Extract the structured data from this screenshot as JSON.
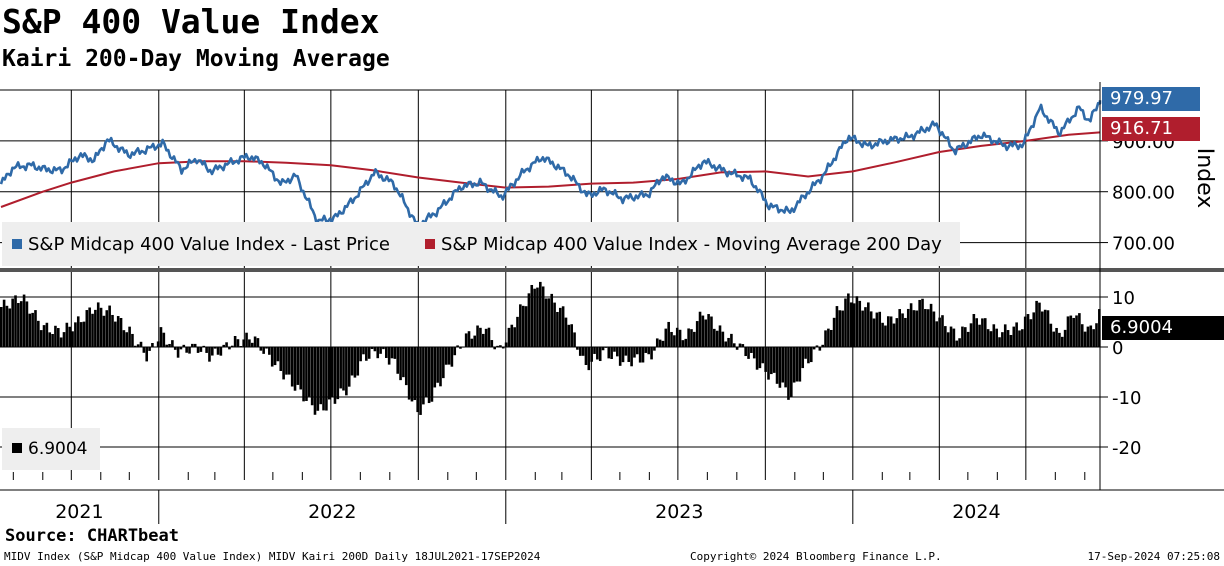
{
  "header": {
    "title": "S&P 400 Value Index",
    "subtitle": "Kairi 200-Day Moving Average"
  },
  "colors": {
    "price": "#2f6aa8",
    "ma": "#b01e2d",
    "kairi": "#000000",
    "legend_bg": "#eeeeee"
  },
  "chart_data": [
    {
      "type": "line",
      "ylabel": "Index",
      "ylim": [
        650,
        1000
      ],
      "yticks": [
        700,
        800,
        900
      ],
      "ytick_labels": [
        "700.00",
        "800.00",
        "900.00"
      ],
      "x_range": [
        "2021-07-18",
        "2024-09-17"
      ],
      "x_year_labels": [
        "2021",
        "2022",
        "2023",
        "2024"
      ],
      "grid": true,
      "legend_position": "bottom-left",
      "series": [
        {
          "name": "S&P Midcap 400 Value Index - Last Price",
          "last_value": "979.97",
          "points": [
            [
              "2021-07-19",
              815
            ],
            [
              "2021-08-01",
              848
            ],
            [
              "2021-08-20",
              852
            ],
            [
              "2021-09-03",
              844
            ],
            [
              "2021-09-20",
              842
            ],
            [
              "2021-10-10",
              872
            ],
            [
              "2021-10-25",
              862
            ],
            [
              "2021-11-08",
              902
            ],
            [
              "2021-11-30",
              873
            ],
            [
              "2021-12-15",
              880
            ],
            [
              "2022-01-05",
              895
            ],
            [
              "2022-01-25",
              843
            ],
            [
              "2022-02-10",
              865
            ],
            [
              "2022-02-25",
              840
            ],
            [
              "2022-03-15",
              855
            ],
            [
              "2022-04-05",
              870
            ],
            [
              "2022-04-20",
              858
            ],
            [
              "2022-05-10",
              815
            ],
            [
              "2022-05-25",
              832
            ],
            [
              "2022-06-17",
              742
            ],
            [
              "2022-07-05",
              748
            ],
            [
              "2022-07-25",
              785
            ],
            [
              "2022-08-16",
              838
            ],
            [
              "2022-09-05",
              816
            ],
            [
              "2022-09-30",
              733
            ],
            [
              "2022-10-20",
              760
            ],
            [
              "2022-11-15",
              810
            ],
            [
              "2022-12-05",
              818
            ],
            [
              "2022-12-28",
              790
            ],
            [
              "2023-01-20",
              840
            ],
            [
              "2023-02-08",
              868
            ],
            [
              "2023-02-24",
              850
            ],
            [
              "2023-03-09",
              832
            ],
            [
              "2023-03-28",
              792
            ],
            [
              "2023-04-15",
              805
            ],
            [
              "2023-05-04",
              786
            ],
            [
              "2023-05-31",
              795
            ],
            [
              "2023-06-15",
              830
            ],
            [
              "2023-07-05",
              815
            ],
            [
              "2023-07-28",
              860
            ],
            [
              "2023-08-20",
              840
            ],
            [
              "2023-09-15",
              825
            ],
            [
              "2023-10-05",
              772
            ],
            [
              "2023-10-27",
              760
            ],
            [
              "2023-11-15",
              800
            ],
            [
              "2023-12-01",
              832
            ],
            [
              "2023-12-27",
              908
            ],
            [
              "2024-01-17",
              890
            ],
            [
              "2024-02-05",
              900
            ],
            [
              "2024-03-01",
              908
            ],
            [
              "2024-03-28",
              933
            ],
            [
              "2024-04-17",
              880
            ],
            [
              "2024-05-15",
              912
            ],
            [
              "2024-06-10",
              890
            ],
            [
              "2024-06-28",
              892
            ],
            [
              "2024-07-16",
              965
            ],
            [
              "2024-08-05",
              915
            ],
            [
              "2024-08-26",
              965
            ],
            [
              "2024-09-06",
              938
            ],
            [
              "2024-09-17",
              979.97
            ]
          ]
        },
        {
          "name": "S&P Midcap 400 Value Index - Moving Average 200 Day",
          "last_value": "916.71",
          "points": [
            [
              "2021-07-19",
              770
            ],
            [
              "2021-09-01",
              800
            ],
            [
              "2021-10-01",
              818
            ],
            [
              "2021-11-15",
              840
            ],
            [
              "2022-01-01",
              856
            ],
            [
              "2022-02-15",
              860
            ],
            [
              "2022-04-01",
              860
            ],
            [
              "2022-05-15",
              857
            ],
            [
              "2022-07-01",
              852
            ],
            [
              "2022-08-15",
              842
            ],
            [
              "2022-10-01",
              828
            ],
            [
              "2022-11-15",
              818
            ],
            [
              "2023-01-01",
              808
            ],
            [
              "2023-02-15",
              810
            ],
            [
              "2023-04-01",
              816
            ],
            [
              "2023-05-15",
              818
            ],
            [
              "2023-07-01",
              825
            ],
            [
              "2023-08-15",
              838
            ],
            [
              "2023-10-01",
              840
            ],
            [
              "2023-11-15",
              830
            ],
            [
              "2024-01-01",
              840
            ],
            [
              "2024-02-15",
              858
            ],
            [
              "2024-04-01",
              878
            ],
            [
              "2024-05-15",
              890
            ],
            [
              "2024-07-01",
              900
            ],
            [
              "2024-08-15",
              912
            ],
            [
              "2024-09-17",
              916.71
            ]
          ]
        }
      ]
    },
    {
      "type": "bar",
      "ylim": [
        -25,
        15
      ],
      "yticks": [
        -20,
        -10,
        0,
        10
      ],
      "ytick_labels": [
        "-20",
        "-10",
        "0",
        "10"
      ],
      "grid": true,
      "legend_position": "bottom-left",
      "series": [
        {
          "name": "",
          "last_value": "6.9004",
          "points": [
            [
              "2021-07-19",
              8
            ],
            [
              "2021-08-10",
              10
            ],
            [
              "2021-09-01",
              4
            ],
            [
              "2021-09-20",
              3
            ],
            [
              "2021-10-08",
              5
            ],
            [
              "2021-10-25",
              8
            ],
            [
              "2021-11-12",
              7
            ],
            [
              "2021-12-01",
              3
            ],
            [
              "2021-12-20",
              -2
            ],
            [
              "2022-01-03",
              3
            ],
            [
              "2022-01-20",
              -1
            ],
            [
              "2022-02-10",
              0
            ],
            [
              "2022-02-25",
              -2
            ],
            [
              "2022-03-20",
              1
            ],
            [
              "2022-04-10",
              2
            ],
            [
              "2022-05-01",
              -3
            ],
            [
              "2022-05-20",
              -7
            ],
            [
              "2022-06-17",
              -13
            ],
            [
              "2022-07-01",
              -11
            ],
            [
              "2022-07-20",
              -8
            ],
            [
              "2022-08-05",
              -2
            ],
            [
              "2022-08-20",
              -1
            ],
            [
              "2022-09-05",
              -3
            ],
            [
              "2022-09-30",
              -13
            ],
            [
              "2022-10-15",
              -10
            ],
            [
              "2022-11-01",
              -4
            ],
            [
              "2022-11-20",
              2
            ],
            [
              "2022-12-10",
              4
            ],
            [
              "2022-12-25",
              -1
            ],
            [
              "2023-01-15",
              7
            ],
            [
              "2023-02-02",
              13
            ],
            [
              "2023-02-20",
              9
            ],
            [
              "2023-03-07",
              6
            ],
            [
              "2023-03-25",
              -4
            ],
            [
              "2023-04-15",
              -1
            ],
            [
              "2023-05-05",
              -3
            ],
            [
              "2023-06-01",
              -2
            ],
            [
              "2023-06-20",
              4
            ],
            [
              "2023-07-10",
              2
            ],
            [
              "2023-07-28",
              7
            ],
            [
              "2023-08-15",
              3
            ],
            [
              "2023-09-05",
              0
            ],
            [
              "2023-09-25",
              -4
            ],
            [
              "2023-10-15",
              -7
            ],
            [
              "2023-10-27",
              -10
            ],
            [
              "2023-11-10",
              -4
            ],
            [
              "2023-11-30",
              1
            ],
            [
              "2023-12-15",
              7
            ],
            [
              "2023-12-28",
              10
            ],
            [
              "2024-01-15",
              8
            ],
            [
              "2024-02-05",
              5
            ],
            [
              "2024-02-25",
              7
            ],
            [
              "2024-03-15",
              9
            ],
            [
              "2024-04-05",
              5
            ],
            [
              "2024-04-20",
              2
            ],
            [
              "2024-05-10",
              6
            ],
            [
              "2024-06-01",
              3
            ],
            [
              "2024-06-25",
              4
            ],
            [
              "2024-07-16",
              9
            ],
            [
              "2024-08-05",
              2
            ],
            [
              "2024-08-20",
              7
            ],
            [
              "2024-09-06",
              3
            ],
            [
              "2024-09-17",
              6.9004
            ]
          ]
        }
      ]
    }
  ],
  "axis": {
    "ylabel": "Index"
  },
  "legend": {
    "price": "S&P Midcap 400 Value Index - Last Price",
    "ma": "S&P Midcap 400 Value Index - Moving Average 200 Day",
    "kairi": "6.9004"
  },
  "tags": {
    "price": "979.97",
    "ma": "916.71",
    "kairi": "6.9004"
  },
  "footer": {
    "source": "Source: CHARTbeat",
    "left": "MIDV Index (S&P Midcap 400 Value Index) MIDV Kairi 200D  Daily 18JUL2021-17SEP2024",
    "center": "Copyright© 2024 Bloomberg Finance L.P.",
    "right": "17-Sep-2024 07:25:08"
  }
}
